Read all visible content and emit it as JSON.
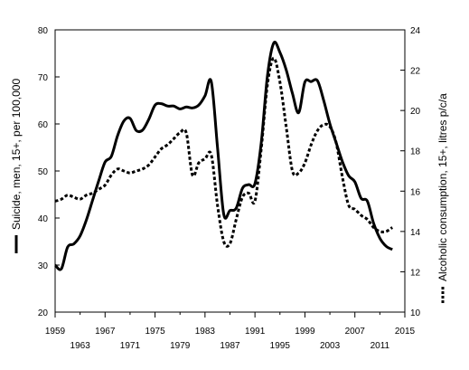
{
  "chart_data": {
    "type": "line",
    "title": "",
    "xlabel": "",
    "ylabel": "Suicide, men, 15+, per 100,000",
    "y2label": "Alcoholic consumption, 15+, litres p/c/a",
    "xlim": [
      1959,
      2015
    ],
    "ylim": [
      20,
      80
    ],
    "y2lim": [
      10,
      24
    ],
    "x_ticks_top": [
      1959,
      1967,
      1975,
      1983,
      1991,
      1999,
      2007,
      2015
    ],
    "x_ticks_bottom": [
      1963,
      1971,
      1979,
      1987,
      1995,
      2003,
      2011
    ],
    "y_ticks": [
      20,
      30,
      40,
      50,
      60,
      70,
      80
    ],
    "y2_ticks": [
      10,
      12,
      14,
      16,
      18,
      20,
      22,
      24
    ],
    "grid": false,
    "series": [
      {
        "axis": "left",
        "style": "solid",
        "x": [
          1959,
          1960,
          1961,
          1962,
          1963,
          1964,
          1965,
          1966,
          1967,
          1968,
          1969,
          1970,
          1971,
          1972,
          1973,
          1974,
          1975,
          1976,
          1977,
          1978,
          1979,
          1980,
          1981,
          1982,
          1983,
          1984,
          1985,
          1986,
          1987,
          1988,
          1989,
          1990,
          1991,
          1992,
          1993,
          1994,
          1995,
          1996,
          1997,
          1998,
          1999,
          2000,
          2001,
          2002,
          2003,
          2004,
          2005,
          2006,
          2007,
          2008,
          2009,
          2010,
          2011,
          2012,
          2013
        ],
        "values": [
          30.0,
          29.2,
          33.8,
          34.5,
          36.2,
          39.6,
          43.8,
          48.0,
          51.9,
          53.1,
          57.5,
          60.6,
          61.2,
          58.6,
          58.7,
          61.0,
          64.0,
          64.3,
          63.8,
          63.8,
          63.2,
          63.6,
          63.4,
          64.0,
          66.0,
          69.0,
          55.0,
          40.8,
          41.6,
          42.1,
          46.3,
          47.1,
          47.3,
          56.0,
          70.3,
          77.2,
          75.2,
          71.5,
          66.5,
          62.4,
          68.9,
          69.0,
          69.2,
          65.0,
          60.0,
          56.0,
          52.0,
          49.0,
          47.7,
          44.2,
          43.6,
          38.9,
          35.7,
          34.0,
          33.3
        ]
      },
      {
        "axis": "right",
        "style": "dotted",
        "x": [
          1959,
          1960,
          1961,
          1962,
          1963,
          1964,
          1965,
          1966,
          1967,
          1968,
          1969,
          1970,
          1971,
          1972,
          1973,
          1974,
          1975,
          1976,
          1977,
          1978,
          1979,
          1980,
          1981,
          1982,
          1983,
          1984,
          1985,
          1986,
          1987,
          1988,
          1989,
          1990,
          1991,
          1992,
          1993,
          1994,
          1995,
          1996,
          1997,
          1998,
          1999,
          2000,
          2001,
          2002,
          2003,
          2004,
          2005,
          2006,
          2007,
          2008,
          2009,
          2010,
          2011,
          2012,
          2013
        ],
        "values": [
          15.5,
          15.6,
          15.8,
          15.7,
          15.6,
          15.8,
          15.9,
          16.1,
          16.3,
          16.8,
          17.1,
          17.0,
          16.9,
          17.0,
          17.1,
          17.3,
          17.7,
          18.1,
          18.3,
          18.6,
          18.9,
          18.9,
          16.8,
          17.4,
          17.6,
          17.8,
          15.3,
          13.5,
          13.4,
          14.6,
          15.7,
          15.9,
          15.5,
          18.1,
          21.3,
          22.6,
          21.4,
          19.2,
          17.0,
          16.9,
          17.4,
          18.3,
          19.0,
          19.3,
          19.2,
          18.4,
          16.7,
          15.3,
          15.1,
          14.8,
          14.6,
          14.2,
          14.0,
          14.0,
          14.2
        ]
      }
    ]
  }
}
